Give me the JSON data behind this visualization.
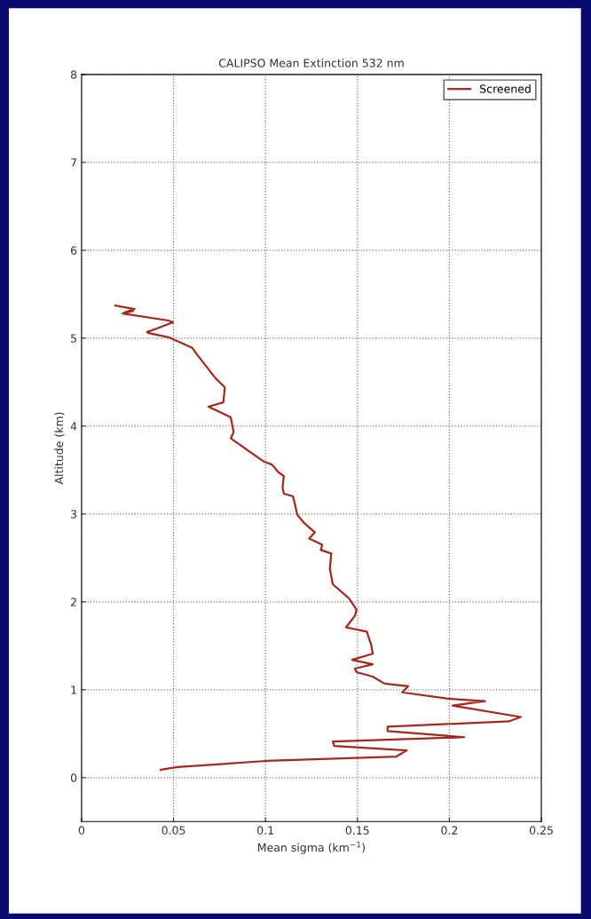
{
  "chart_data": {
    "type": "line",
    "title": "CALIPSO Mean Extinction 532 nm",
    "xlabel": "Mean sigma (km$^{−1}$)",
    "ylabel": "Altitude (km)",
    "xlim": [
      0,
      0.25
    ],
    "xticks": [
      0,
      0.05,
      0.1,
      0.15,
      0.2,
      0.25
    ],
    "ylim": [
      -0.5,
      8
    ],
    "yticks": [
      0,
      1,
      2,
      3,
      4,
      5,
      6,
      7,
      8
    ],
    "grid": true,
    "legend": "top right",
    "series": [
      {
        "name": "Screened",
        "color": "#a3281e",
        "x": [
          0.0183,
          0.0288,
          0.0232,
          0.028,
          0.0224,
          0.0473,
          0.0497,
          0.0409,
          0.0357,
          0.036,
          0.0473,
          0.0602,
          0.0618,
          0.073,
          0.0779,
          0.0771,
          0.069,
          0.0811,
          0.0827,
          0.0811,
          0.0988,
          0.1036,
          0.1068,
          0.11,
          0.1093,
          0.11,
          0.115,
          0.1173,
          0.1213,
          0.1269,
          0.1237,
          0.1309,
          0.1301,
          0.1358,
          0.135,
          0.1366,
          0.1454,
          0.1495,
          0.1486,
          0.1438,
          0.1551,
          0.1575,
          0.1583,
          0.1471,
          0.1583,
          0.1486,
          0.1495,
          0.1583,
          0.1647,
          0.1776,
          0.1744,
          0.1985,
          0.2194,
          0.2017,
          0.2388,
          0.2323,
          0.1664,
          0.1664,
          0.2082,
          0.1366,
          0.1374,
          0.1768,
          0.1712,
          0.1004,
          0.0521,
          0.043
        ],
        "values": [
          5.37,
          5.33,
          5.29,
          5.31,
          5.28,
          5.2,
          5.18,
          5.11,
          5.07,
          5.06,
          5.01,
          4.89,
          4.84,
          4.54,
          4.44,
          4.27,
          4.22,
          4.1,
          3.93,
          3.86,
          3.6,
          3.56,
          3.48,
          3.43,
          3.3,
          3.23,
          3.2,
          2.99,
          2.89,
          2.79,
          2.72,
          2.65,
          2.59,
          2.55,
          2.38,
          2.2,
          2.04,
          1.91,
          1.84,
          1.71,
          1.66,
          1.51,
          1.41,
          1.34,
          1.29,
          1.24,
          1.2,
          1.15,
          1.07,
          1.04,
          0.97,
          0.9,
          0.87,
          0.82,
          0.69,
          0.64,
          0.58,
          0.53,
          0.46,
          0.41,
          0.36,
          0.31,
          0.24,
          0.19,
          0.12,
          0.09
        ]
      }
    ]
  }
}
